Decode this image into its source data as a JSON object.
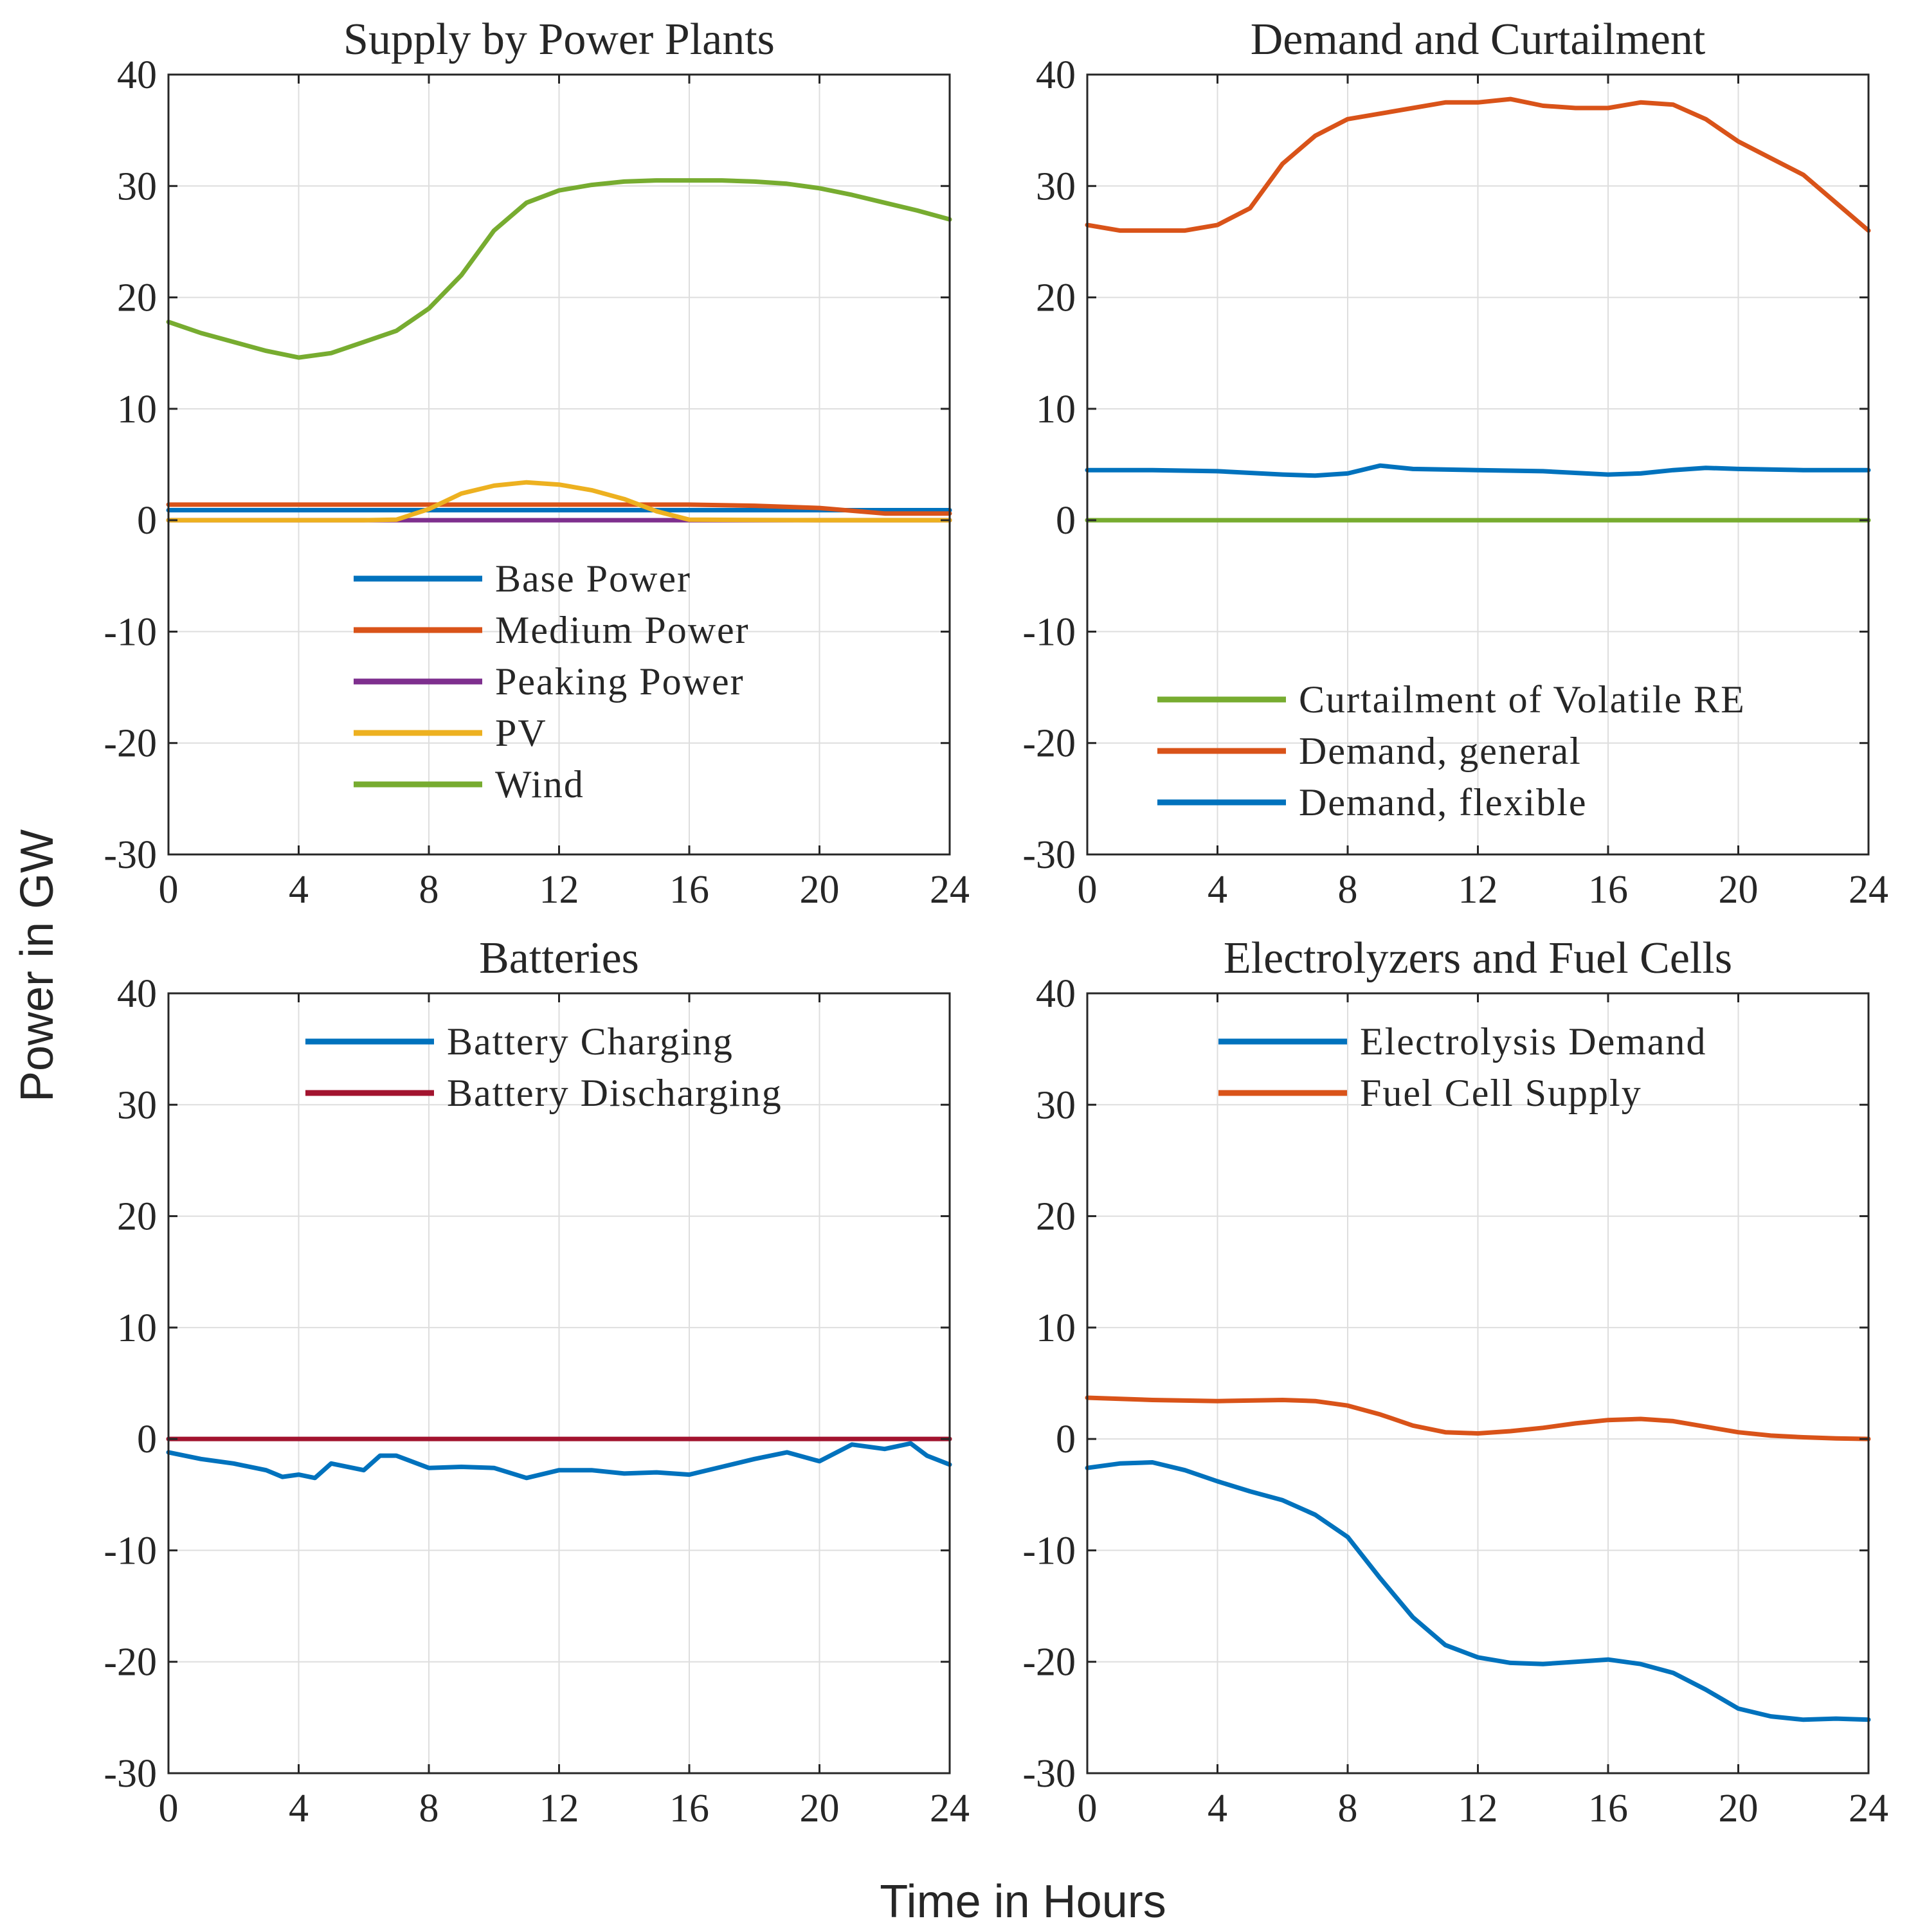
{
  "figure": {
    "ylabel": "Power in GW",
    "xlabel": "Time in Hours"
  },
  "chart_data": [
    {
      "type": "line",
      "title": "Supply by Power Plants",
      "xlim": [
        0,
        24
      ],
      "ylim": [
        -30,
        40
      ],
      "xticks": [
        0,
        4,
        8,
        12,
        16,
        20,
        24
      ],
      "yticks": [
        -30,
        -20,
        -10,
        0,
        10,
        20,
        30,
        40
      ],
      "grid": true,
      "legend_position": "center",
      "series": [
        {
          "name": "Base Power",
          "color": "#0072BD",
          "x": [
            0,
            4,
            8,
            12,
            16,
            20,
            24
          ],
          "y": [
            0.9,
            0.9,
            0.9,
            0.9,
            0.9,
            0.9,
            0.9
          ]
        },
        {
          "name": "Medium Power",
          "color": "#D95319",
          "x": [
            0,
            4,
            8,
            12,
            16,
            18,
            20,
            22,
            24
          ],
          "y": [
            1.4,
            1.4,
            1.4,
            1.4,
            1.4,
            1.3,
            1.1,
            0.6,
            0.6
          ]
        },
        {
          "name": "Peaking Power",
          "color": "#7E2F8E",
          "x": [
            0,
            4,
            8,
            12,
            16,
            20,
            24
          ],
          "y": [
            0,
            0,
            0,
            0,
            0,
            0,
            0
          ]
        },
        {
          "name": "PV",
          "color": "#EDB120",
          "x": [
            0,
            6,
            7,
            8,
            9,
            10,
            11,
            12,
            13,
            14,
            15,
            16,
            20,
            24
          ],
          "y": [
            0,
            0,
            0.05,
            1.0,
            2.4,
            3.1,
            3.4,
            3.2,
            2.7,
            1.9,
            0.8,
            0.05,
            0,
            0
          ]
        },
        {
          "name": "Wind",
          "color": "#77AC30",
          "x": [
            0,
            1,
            2,
            3,
            4,
            5,
            6,
            7,
            8,
            9,
            10,
            11,
            12,
            13,
            14,
            15,
            16,
            17,
            18,
            19,
            20,
            21,
            22,
            23,
            24
          ],
          "y": [
            17.8,
            16.8,
            16.0,
            15.2,
            14.6,
            15.0,
            16.0,
            17.0,
            19.0,
            22.0,
            26.0,
            28.5,
            29.6,
            30.1,
            30.4,
            30.5,
            30.5,
            30.5,
            30.4,
            30.2,
            29.8,
            29.2,
            28.5,
            27.8,
            27.0
          ]
        }
      ]
    },
    {
      "type": "line",
      "title": "Demand and Curtailment",
      "xlim": [
        0,
        24
      ],
      "ylim": [
        -30,
        40
      ],
      "xticks": [
        0,
        4,
        8,
        12,
        16,
        20,
        24
      ],
      "yticks": [
        -30,
        -20,
        -10,
        0,
        10,
        20,
        30,
        40
      ],
      "grid": true,
      "legend_position": "bottom-right",
      "series": [
        {
          "name": "Curtailment of Volatile RE",
          "color": "#77AC30",
          "x": [
            0,
            4,
            8,
            12,
            16,
            20,
            24
          ],
          "y": [
            0,
            0,
            0,
            0,
            0,
            0,
            0
          ]
        },
        {
          "name": "Demand, general",
          "color": "#D95319",
          "x": [
            0,
            1,
            2,
            3,
            4,
            5,
            6,
            7,
            8,
            9,
            10,
            11,
            12,
            13,
            14,
            15,
            16,
            17,
            18,
            19,
            20,
            21,
            22,
            23,
            24
          ],
          "y": [
            26.5,
            26.0,
            26.0,
            26.0,
            26.5,
            28.0,
            32.0,
            34.5,
            36.0,
            36.5,
            37.0,
            37.5,
            37.5,
            37.8,
            37.2,
            37.0,
            37.0,
            37.5,
            37.3,
            36.0,
            34.0,
            32.5,
            31.0,
            28.5,
            26.0
          ]
        },
        {
          "name": "Demand, flexible",
          "color": "#0072BD",
          "x": [
            0,
            2,
            4,
            6,
            7,
            8,
            9,
            10,
            12,
            14,
            16,
            17,
            18,
            19,
            20,
            22,
            24
          ],
          "y": [
            4.5,
            4.5,
            4.4,
            4.1,
            4.0,
            4.2,
            4.9,
            4.6,
            4.5,
            4.4,
            4.1,
            4.2,
            4.5,
            4.7,
            4.6,
            4.5,
            4.5
          ]
        }
      ]
    },
    {
      "type": "line",
      "title": "Batteries",
      "xlim": [
        0,
        24
      ],
      "ylim": [
        -30,
        40
      ],
      "xticks": [
        0,
        4,
        8,
        12,
        16,
        20,
        24
      ],
      "yticks": [
        -30,
        -20,
        -10,
        0,
        10,
        20,
        30,
        40
      ],
      "grid": true,
      "legend_position": "top",
      "series": [
        {
          "name": "Battery Charging",
          "color": "#0072BD",
          "x": [
            0,
            1,
            2,
            3,
            3.5,
            4,
            4.5,
            5,
            6,
            6.5,
            7,
            8,
            9,
            10,
            11,
            12,
            13,
            14,
            15,
            16,
            17,
            18,
            19,
            20,
            21,
            22,
            22.8,
            23.3,
            24
          ],
          "y": [
            -1.2,
            -1.8,
            -2.2,
            -2.8,
            -3.4,
            -3.2,
            -3.5,
            -2.2,
            -2.8,
            -1.5,
            -1.5,
            -2.6,
            -2.5,
            -2.6,
            -3.5,
            -2.8,
            -2.8,
            -3.1,
            -3.0,
            -3.2,
            -2.5,
            -1.8,
            -1.2,
            -2.0,
            -0.5,
            -0.9,
            -0.4,
            -1.5,
            -2.3
          ]
        },
        {
          "name": "Battery Discharging",
          "color": "#A2142F",
          "x": [
            0,
            4,
            8,
            12,
            16,
            20,
            24
          ],
          "y": [
            0,
            0,
            0,
            0,
            0,
            0,
            0
          ]
        }
      ]
    },
    {
      "type": "line",
      "title": "Electrolyzers and Fuel Cells",
      "xlim": [
        0,
        24
      ],
      "ylim": [
        -30,
        40
      ],
      "xticks": [
        0,
        4,
        8,
        12,
        16,
        20,
        24
      ],
      "yticks": [
        -30,
        -20,
        -10,
        0,
        10,
        20,
        30,
        40
      ],
      "grid": true,
      "legend_position": "top",
      "series": [
        {
          "name": "Electrolysis Demand",
          "color": "#0072BD",
          "x": [
            0,
            1,
            2,
            3,
            4,
            5,
            6,
            7,
            8,
            9,
            10,
            11,
            12,
            13,
            14,
            15,
            16,
            17,
            18,
            19,
            20,
            21,
            22,
            23,
            24
          ],
          "y": [
            -2.6,
            -2.2,
            -2.1,
            -2.8,
            -3.8,
            -4.7,
            -5.5,
            -6.8,
            -8.8,
            -12.5,
            -16.0,
            -18.5,
            -19.6,
            -20.1,
            -20.2,
            -20.0,
            -19.8,
            -20.2,
            -21.0,
            -22.5,
            -24.2,
            -24.9,
            -25.2,
            -25.1,
            -25.2
          ]
        },
        {
          "name": "Fuel Cell Supply",
          "color": "#D95319",
          "x": [
            0,
            2,
            4,
            6,
            7,
            8,
            9,
            10,
            11,
            12,
            13,
            14,
            15,
            16,
            17,
            18,
            19,
            20,
            21,
            22,
            23,
            24
          ],
          "y": [
            3.7,
            3.5,
            3.4,
            3.5,
            3.4,
            3.0,
            2.2,
            1.2,
            0.6,
            0.5,
            0.7,
            1.0,
            1.4,
            1.7,
            1.8,
            1.6,
            1.1,
            0.6,
            0.3,
            0.15,
            0.05,
            0.0
          ]
        }
      ]
    }
  ]
}
